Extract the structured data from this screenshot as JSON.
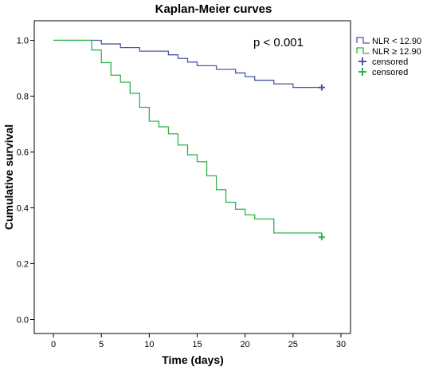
{
  "chart_data": {
    "type": "line",
    "title": "Kaplan-Meier curves",
    "xlabel": "Time (days)",
    "ylabel": "Cumulative survival",
    "xlim": [
      -2,
      31
    ],
    "ylim": [
      -0.05,
      1.07
    ],
    "xticks": [
      "0",
      "5",
      "10",
      "15",
      "20",
      "25",
      "30"
    ],
    "yticks": [
      "0.0",
      "0.2",
      "0.4",
      "0.6",
      "0.8",
      "1.0"
    ],
    "grid": false,
    "legend_position": "right",
    "annotation": "p < 0.001",
    "series": [
      {
        "name": "NLR < 12.90",
        "color": "#4a58a6",
        "step": true,
        "x": [
          0,
          5,
          7,
          9,
          12,
          13,
          14,
          15,
          17,
          19,
          20,
          21,
          23,
          25,
          28
        ],
        "y": [
          1.0,
          0.987,
          0.974,
          0.961,
          0.948,
          0.935,
          0.922,
          0.909,
          0.896,
          0.883,
          0.87,
          0.857,
          0.844,
          0.831,
          0.831
        ],
        "censored": [
          {
            "x": 28,
            "y": 0.831
          }
        ]
      },
      {
        "name": "NLR ≥ 12.90",
        "color": "#2fb24a",
        "step": true,
        "x": [
          0,
          4,
          5,
          6,
          7,
          8,
          9,
          10,
          11,
          12,
          13,
          14,
          15,
          16,
          17,
          18,
          19,
          20,
          21,
          23,
          28
        ],
        "y": [
          1.0,
          0.965,
          0.92,
          0.875,
          0.85,
          0.81,
          0.76,
          0.71,
          0.69,
          0.665,
          0.625,
          0.59,
          0.565,
          0.515,
          0.465,
          0.42,
          0.395,
          0.375,
          0.36,
          0.31,
          0.295
        ],
        "censored": [
          {
            "x": 28,
            "y": 0.295
          }
        ]
      }
    ],
    "legend": [
      {
        "label": "NLR < 12.90",
        "kind": "line",
        "color": "#4a58a6"
      },
      {
        "label": "NLR ≥ 12.90",
        "kind": "line",
        "color": "#2fb24a"
      },
      {
        "label": "censored",
        "kind": "plus",
        "color": "#4a58a6"
      },
      {
        "label": "censored",
        "kind": "plus",
        "color": "#2fb24a"
      }
    ]
  }
}
